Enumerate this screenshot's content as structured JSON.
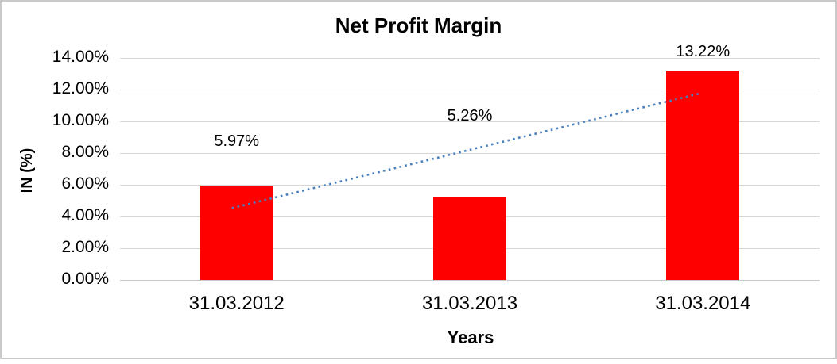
{
  "chart_data": {
    "type": "bar",
    "title": "Net Profit Margin",
    "xlabel": "Years",
    "ylabel": "IN (%)",
    "categories": [
      "31.03.2012",
      "31.03.2013",
      "31.03.2014"
    ],
    "values": [
      5.97,
      5.26,
      13.22
    ],
    "data_labels": [
      "5.97%",
      "5.26%",
      "13.22%"
    ],
    "y_ticks": [
      {
        "label": "14.00%",
        "value": 14
      },
      {
        "label": "12.00%",
        "value": 12
      },
      {
        "label": "10.00%",
        "value": 10
      },
      {
        "label": "8.00%",
        "value": 8
      },
      {
        "label": "6.00%",
        "value": 6
      },
      {
        "label": "4.00%",
        "value": 4
      },
      {
        "label": "2.00%",
        "value": 2
      },
      {
        "label": "0.00%",
        "value": 0
      }
    ],
    "ylim": [
      0,
      14
    ],
    "grid": "horizontal",
    "legend": "none",
    "colors": {
      "bar": "#ff0000",
      "trendline": "#4a7ebd",
      "gridline": "#d6d6d6",
      "text": "#000000",
      "frame_border": "#c9c9c9"
    },
    "trendline": {
      "type": "linear",
      "style": "dotted",
      "start_value": 4.53,
      "end_value": 11.78
    }
  }
}
